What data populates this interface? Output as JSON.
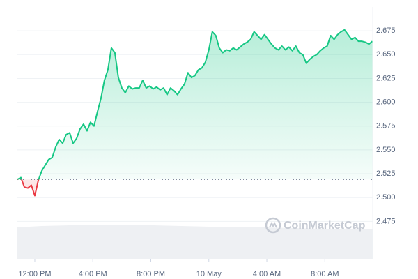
{
  "chart_data": {
    "type": "line",
    "watermark": "CoinMarketCap",
    "color": "#16c784",
    "negative_color": "#ea3943",
    "baseline": 2.519,
    "grid": true,
    "xlim": [
      -1.2,
      23.3
    ],
    "ylim": [
      2.435,
      2.7
    ],
    "xticks": [
      {
        "value": 0,
        "label": "12:00 PM"
      },
      {
        "value": 4,
        "label": "4:00 PM"
      },
      {
        "value": 8,
        "label": "8:00 PM"
      },
      {
        "value": 12,
        "label": "10 May"
      },
      {
        "value": 16,
        "label": "4:00 AM"
      },
      {
        "value": 20,
        "label": "8:00 AM"
      }
    ],
    "yticks": [
      2.675,
      {
        "value": 2.65,
        "label": "2.650"
      },
      2.625,
      {
        "value": 2.6,
        "label": "2.600"
      },
      2.575,
      {
        "value": 2.55,
        "label": "2.550"
      },
      2.525,
      {
        "value": 2.5,
        "label": "2.500"
      },
      2.475
    ],
    "x": [
      -1.2,
      -0.96,
      -0.72,
      -0.48,
      -0.24,
      0,
      0.24,
      0.48,
      0.72,
      0.96,
      1.2,
      1.44,
      1.68,
      1.92,
      2.16,
      2.4,
      2.64,
      2.88,
      3.12,
      3.36,
      3.6,
      3.84,
      4.08,
      4.32,
      4.56,
      4.8,
      5.04,
      5.28,
      5.52,
      5.76,
      6,
      6.24,
      6.48,
      6.72,
      6.96,
      7.2,
      7.44,
      7.68,
      7.92,
      8.16,
      8.4,
      8.64,
      8.88,
      9.12,
      9.36,
      9.6,
      9.84,
      10.08,
      10.32,
      10.56,
      10.8,
      11.04,
      11.28,
      11.52,
      11.76,
      12,
      12.24,
      12.48,
      12.72,
      12.96,
      13.2,
      13.44,
      13.68,
      13.92,
      14.16,
      14.4,
      14.64,
      14.88,
      15.12,
      15.36,
      15.6,
      15.84,
      16.08,
      16.32,
      16.56,
      16.8,
      17.04,
      17.28,
      17.52,
      17.76,
      18,
      18.24,
      18.48,
      18.72,
      18.96,
      19.2,
      19.44,
      19.68,
      19.92,
      20.16,
      20.4,
      20.64,
      20.88,
      21.12,
      21.36,
      21.6,
      21.84,
      22.08,
      22.32,
      22.56,
      22.8,
      23.04,
      23.28
    ],
    "values": [
      2.519,
      2.521,
      2.511,
      2.51,
      2.513,
      2.502,
      2.518,
      2.528,
      2.534,
      2.54,
      2.542,
      2.553,
      2.561,
      2.557,
      2.566,
      2.568,
      2.557,
      2.562,
      2.572,
      2.577,
      2.57,
      2.579,
      2.575,
      2.59,
      2.604,
      2.623,
      2.634,
      2.657,
      2.652,
      2.626,
      2.615,
      2.61,
      2.617,
      2.614,
      2.615,
      2.615,
      2.623,
      2.615,
      2.617,
      2.614,
      2.616,
      2.613,
      2.615,
      2.608,
      2.615,
      2.612,
      2.608,
      2.614,
      2.619,
      2.631,
      2.626,
      2.628,
      2.634,
      2.636,
      2.642,
      2.655,
      2.674,
      2.67,
      2.657,
      2.652,
      2.655,
      2.654,
      2.657,
      2.655,
      2.658,
      2.661,
      2.663,
      2.666,
      2.674,
      2.67,
      2.666,
      2.671,
      2.666,
      2.661,
      2.657,
      2.655,
      2.659,
      2.655,
      2.658,
      2.654,
      2.659,
      2.652,
      2.65,
      2.641,
      2.645,
      2.648,
      2.65,
      2.654,
      2.657,
      2.659,
      2.67,
      2.666,
      2.671,
      2.674,
      2.676,
      2.671,
      2.666,
      2.668,
      2.664,
      2.664,
      2.663,
      2.661,
      2.664
    ]
  }
}
